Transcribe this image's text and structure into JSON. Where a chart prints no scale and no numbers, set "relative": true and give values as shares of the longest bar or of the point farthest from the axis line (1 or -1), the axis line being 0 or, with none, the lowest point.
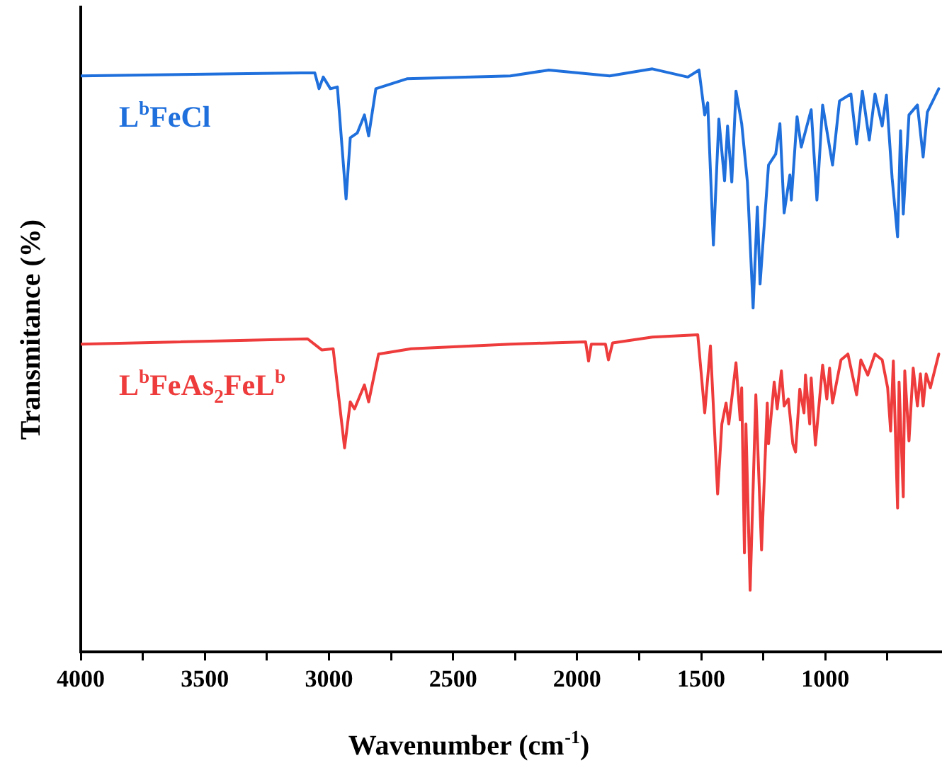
{
  "chart_data": {
    "type": "line",
    "xlabel": "Wavenumber (cm$^{-1}$)",
    "ylabel": "Transmitance (%)",
    "relative": true,
    "legend": false,
    "grid": false,
    "marker": "none",
    "line_style": "solid",
    "xlim": [
      4000,
      530
    ],
    "xticks": [
      4000,
      {
        "value": 3750,
        "label": null
      },
      3500,
      {
        "value": 3250,
        "label": null
      },
      3000,
      {
        "value": 2750,
        "label": null
      },
      2500,
      {
        "value": 2250,
        "label": null
      },
      2000,
      {
        "value": 1750,
        "label": null
      },
      1500,
      {
        "value": 1250,
        "label": null
      },
      1000,
      {
        "value": 750,
        "label": null
      }
    ],
    "series": [
      {
        "name": "L$^{b}$FeCl",
        "color": "#1f6fdc",
        "x": [
          4000,
          3109,
          3057,
          3040,
          3023,
          2994,
          2966,
          2931,
          2914,
          2886,
          2857,
          2840,
          2811,
          2686,
          2269,
          2114,
          1869,
          1697,
          1554,
          1509,
          1486,
          1474,
          1451,
          1429,
          1406,
          1394,
          1377,
          1360,
          1337,
          1314,
          1291,
          1274,
          1263,
          1229,
          1200,
          1183,
          1166,
          1143,
          1137,
          1114,
          1097,
          1057,
          1034,
          1011,
          971,
          943,
          897,
          874,
          851,
          823,
          800,
          771,
          754,
          731,
          709,
          697,
          686,
          663,
          629,
          606,
          589,
          543
        ],
        "values": [
          0.988,
          0.993,
          0.993,
          0.966,
          0.986,
          0.966,
          0.969,
          0.777,
          0.882,
          0.89,
          0.921,
          0.885,
          0.966,
          0.983,
          0.988,
          0.998,
          0.988,
          1.0,
          0.986,
          0.998,
          0.921,
          0.942,
          0.698,
          0.914,
          0.808,
          0.902,
          0.806,
          0.962,
          0.906,
          0.806,
          0.59,
          0.763,
          0.631,
          0.835,
          0.854,
          0.906,
          0.753,
          0.818,
          0.775,
          0.918,
          0.866,
          0.93,
          0.775,
          0.938,
          0.835,
          0.945,
          0.957,
          0.871,
          0.962,
          0.878,
          0.957,
          0.902,
          0.955,
          0.813,
          0.712,
          0.894,
          0.751,
          0.921,
          0.938,
          0.849,
          0.926,
          0.966
        ]
      },
      {
        "name": "L$^{b}$FeAs$_{2}$FeL$^{b}$",
        "color": "#ee3b3b",
        "x": [
          4000,
          3086,
          3029,
          2983,
          2937,
          2914,
          2897,
          2857,
          2840,
          2800,
          2669,
          2269,
          1966,
          1954,
          1943,
          1886,
          1874,
          1857,
          1697,
          1514,
          1486,
          1463,
          1434,
          1417,
          1400,
          1389,
          1360,
          1343,
          1337,
          1326,
          1320,
          1303,
          1280,
          1257,
          1234,
          1229,
          1206,
          1194,
          1177,
          1166,
          1149,
          1131,
          1120,
          1103,
          1086,
          1080,
          1063,
          1057,
          1040,
          1011,
          994,
          983,
          971,
          937,
          909,
          874,
          857,
          829,
          800,
          771,
          749,
          737,
          726,
          709,
          703,
          686,
          680,
          663,
          646,
          629,
          617,
          606,
          594,
          577,
          543
        ],
        "values": [
          0.528,
          0.537,
          0.518,
          0.52,
          0.35,
          0.429,
          0.417,
          0.458,
          0.429,
          0.511,
          0.52,
          0.528,
          0.532,
          0.499,
          0.528,
          0.528,
          0.501,
          0.53,
          0.54,
          0.544,
          0.41,
          0.525,
          0.271,
          0.391,
          0.427,
          0.391,
          0.496,
          0.398,
          0.453,
          0.17,
          0.391,
          0.106,
          0.441,
          0.175,
          0.427,
          0.357,
          0.463,
          0.417,
          0.482,
          0.422,
          0.434,
          0.357,
          0.343,
          0.451,
          0.41,
          0.475,
          0.391,
          0.47,
          0.355,
          0.492,
          0.434,
          0.487,
          0.427,
          0.501,
          0.511,
          0.441,
          0.501,
          0.475,
          0.511,
          0.501,
          0.453,
          0.379,
          0.499,
          0.247,
          0.463,
          0.266,
          0.482,
          0.362,
          0.487,
          0.422,
          0.477,
          0.422,
          0.477,
          0.453,
          0.511
        ]
      }
    ]
  }
}
